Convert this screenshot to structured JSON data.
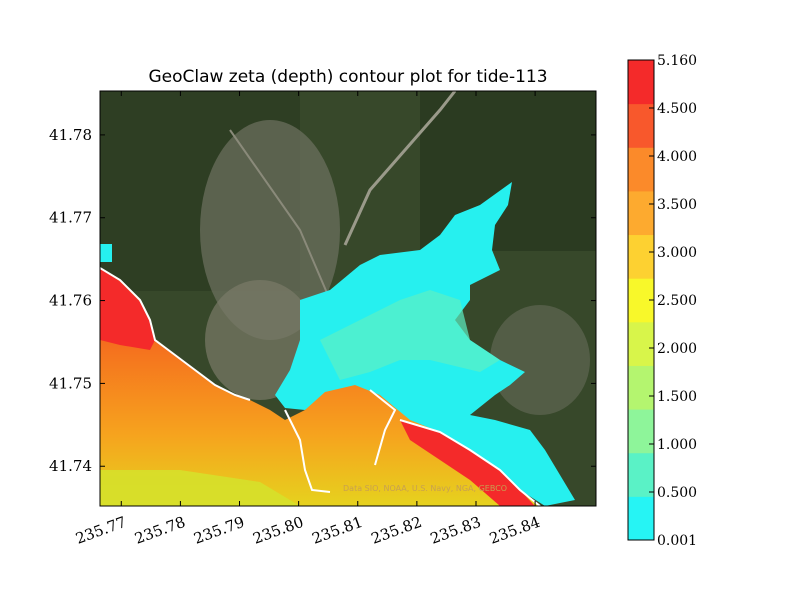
{
  "chart_data": {
    "type": "heatmap",
    "title": "GeoClaw zeta (depth) contour plot for tide-113",
    "xlabel": "",
    "ylabel": "",
    "xlim": [
      235.7664,
      235.8503
    ],
    "ylim": [
      41.7352,
      41.7853
    ],
    "x_ticks": [
      "235.77",
      "235.78",
      "235.79",
      "235.80",
      "235.81",
      "235.82",
      "235.83",
      "235.84"
    ],
    "x_tick_values": [
      235.77,
      235.78,
      235.79,
      235.8,
      235.81,
      235.82,
      235.83,
      235.84
    ],
    "y_ticks": [
      "41.74",
      "41.75",
      "41.76",
      "41.77",
      "41.78"
    ],
    "y_tick_values": [
      41.74,
      41.75,
      41.76,
      41.77,
      41.78
    ],
    "background": "satellite imagery",
    "map_credit": "Data SIO, NOAA, U.S. Navy, NGA, GEBCO",
    "colorbar": {
      "levels": [
        0.001,
        0.5,
        1.0,
        1.5,
        2.0,
        2.5,
        3.0,
        3.5,
        4.0,
        4.5,
        5.16
      ],
      "labels": [
        "0.001",
        "0.500",
        "1.000",
        "1.500",
        "2.000",
        "2.500",
        "3.000",
        "3.500",
        "4.000",
        "4.500",
        "5.160"
      ],
      "colors": [
        "#26f4f4",
        "#5af2c6",
        "#8ef59a",
        "#b4f56f",
        "#d8f54a",
        "#f8f82a",
        "#fdd131",
        "#fdaa2f",
        "#fb8a2a",
        "#f8582c",
        "#f42a2a"
      ]
    }
  }
}
